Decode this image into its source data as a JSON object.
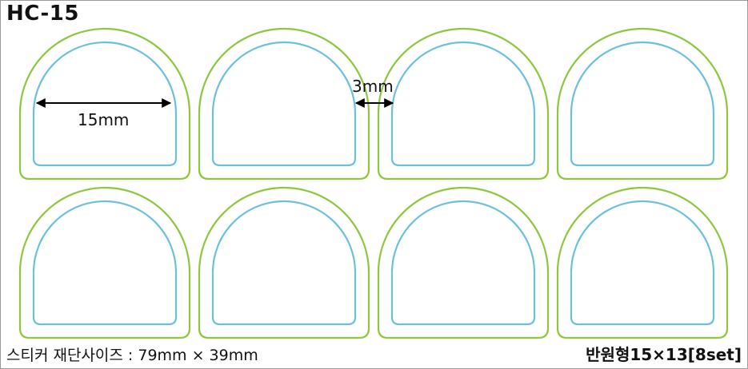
{
  "title": "HC-15",
  "cut_size": "스티커 재단사이즈 : 79mm × 39mm",
  "shape_spec": "반원형15×13[8set]",
  "dimension_width": "15mm",
  "dimension_gap": "3mm",
  "colors": {
    "cut_line": "#8dc63f",
    "safe_line": "#6cc0dc"
  },
  "layout": {
    "rows": 2,
    "columns": 4
  }
}
